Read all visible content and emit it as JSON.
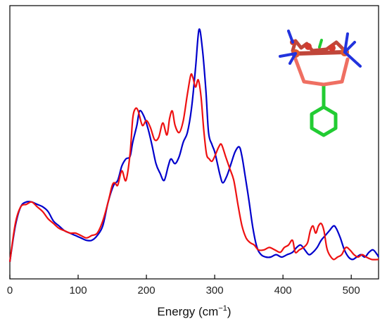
{
  "chart_data": {
    "type": "line",
    "title": "",
    "xlabel_main": "Energy (cm",
    "xlabel_sup": "−1",
    "xlabel_close": ")",
    "ylabel": "",
    "xlim": [
      0,
      540
    ],
    "ylim": [
      0,
      1
    ],
    "x_ticks": [
      0,
      100,
      200,
      300,
      400,
      500
    ],
    "y_ticks_visible": false,
    "grid": false,
    "legend": "none",
    "colors": {
      "blue": "#0000cc",
      "red": "#ee1111"
    },
    "series": [
      {
        "color": "#0000cc",
        "points": [
          [
            0,
            0.03
          ],
          [
            8,
            0.18
          ],
          [
            16,
            0.26
          ],
          [
            24,
            0.28
          ],
          [
            32,
            0.28
          ],
          [
            40,
            0.27
          ],
          [
            48,
            0.26
          ],
          [
            56,
            0.24
          ],
          [
            64,
            0.2
          ],
          [
            72,
            0.18
          ],
          [
            80,
            0.16
          ],
          [
            88,
            0.15
          ],
          [
            96,
            0.14
          ],
          [
            104,
            0.13
          ],
          [
            112,
            0.12
          ],
          [
            120,
            0.12
          ],
          [
            128,
            0.14
          ],
          [
            136,
            0.18
          ],
          [
            144,
            0.28
          ],
          [
            152,
            0.35
          ],
          [
            158,
            0.37
          ],
          [
            164,
            0.43
          ],
          [
            170,
            0.46
          ],
          [
            176,
            0.47
          ],
          [
            180,
            0.53
          ],
          [
            186,
            0.6
          ],
          [
            190,
            0.66
          ],
          [
            196,
            0.64
          ],
          [
            202,
            0.59
          ],
          [
            208,
            0.52
          ],
          [
            214,
            0.44
          ],
          [
            220,
            0.4
          ],
          [
            226,
            0.37
          ],
          [
            232,
            0.43
          ],
          [
            236,
            0.46
          ],
          [
            242,
            0.44
          ],
          [
            248,
            0.47
          ],
          [
            254,
            0.53
          ],
          [
            260,
            0.57
          ],
          [
            266,
            0.67
          ],
          [
            272,
            0.84
          ],
          [
            277,
            1.0
          ],
          [
            282,
            0.92
          ],
          [
            287,
            0.75
          ],
          [
            291,
            0.57
          ],
          [
            296,
            0.52
          ],
          [
            300,
            0.49
          ],
          [
            304,
            0.44
          ],
          [
            308,
            0.39
          ],
          [
            312,
            0.36
          ],
          [
            318,
            0.39
          ],
          [
            324,
            0.44
          ],
          [
            330,
            0.49
          ],
          [
            336,
            0.51
          ],
          [
            340,
            0.47
          ],
          [
            344,
            0.4
          ],
          [
            350,
            0.29
          ],
          [
            356,
            0.17
          ],
          [
            362,
            0.09
          ],
          [
            368,
            0.06
          ],
          [
            375,
            0.05
          ],
          [
            382,
            0.05
          ],
          [
            390,
            0.06
          ],
          [
            398,
            0.05
          ],
          [
            406,
            0.06
          ],
          [
            414,
            0.07
          ],
          [
            420,
            0.09
          ],
          [
            426,
            0.1
          ],
          [
            432,
            0.08
          ],
          [
            438,
            0.06
          ],
          [
            444,
            0.07
          ],
          [
            450,
            0.09
          ],
          [
            456,
            0.12
          ],
          [
            462,
            0.14
          ],
          [
            468,
            0.16
          ],
          [
            474,
            0.18
          ],
          [
            478,
            0.17
          ],
          [
            484,
            0.13
          ],
          [
            490,
            0.08
          ],
          [
            496,
            0.05
          ],
          [
            502,
            0.04
          ],
          [
            508,
            0.05
          ],
          [
            514,
            0.06
          ],
          [
            520,
            0.05
          ],
          [
            526,
            0.07
          ],
          [
            532,
            0.08
          ],
          [
            538,
            0.06
          ],
          [
            540,
            0.05
          ]
        ]
      },
      {
        "color": "#ee1111",
        "points": [
          [
            0,
            0.03
          ],
          [
            8,
            0.19
          ],
          [
            16,
            0.26
          ],
          [
            24,
            0.27
          ],
          [
            32,
            0.28
          ],
          [
            40,
            0.26
          ],
          [
            48,
            0.24
          ],
          [
            56,
            0.21
          ],
          [
            64,
            0.19
          ],
          [
            72,
            0.17
          ],
          [
            80,
            0.16
          ],
          [
            88,
            0.15
          ],
          [
            96,
            0.15
          ],
          [
            104,
            0.14
          ],
          [
            112,
            0.13
          ],
          [
            120,
            0.14
          ],
          [
            128,
            0.15
          ],
          [
            136,
            0.2
          ],
          [
            144,
            0.28
          ],
          [
            150,
            0.35
          ],
          [
            154,
            0.36
          ],
          [
            158,
            0.35
          ],
          [
            164,
            0.41
          ],
          [
            170,
            0.37
          ],
          [
            176,
            0.48
          ],
          [
            180,
            0.63
          ],
          [
            184,
            0.67
          ],
          [
            188,
            0.66
          ],
          [
            194,
            0.6
          ],
          [
            200,
            0.62
          ],
          [
            206,
            0.59
          ],
          [
            212,
            0.54
          ],
          [
            218,
            0.55
          ],
          [
            224,
            0.61
          ],
          [
            230,
            0.56
          ],
          [
            234,
            0.63
          ],
          [
            238,
            0.66
          ],
          [
            242,
            0.6
          ],
          [
            248,
            0.57
          ],
          [
            254,
            0.62
          ],
          [
            260,
            0.73
          ],
          [
            265,
            0.81
          ],
          [
            268,
            0.8
          ],
          [
            272,
            0.76
          ],
          [
            276,
            0.79
          ],
          [
            280,
            0.72
          ],
          [
            284,
            0.58
          ],
          [
            288,
            0.48
          ],
          [
            292,
            0.46
          ],
          [
            296,
            0.45
          ],
          [
            300,
            0.47
          ],
          [
            306,
            0.51
          ],
          [
            310,
            0.52
          ],
          [
            316,
            0.47
          ],
          [
            322,
            0.42
          ],
          [
            328,
            0.37
          ],
          [
            334,
            0.27
          ],
          [
            340,
            0.18
          ],
          [
            346,
            0.13
          ],
          [
            352,
            0.11
          ],
          [
            358,
            0.1
          ],
          [
            364,
            0.08
          ],
          [
            372,
            0.08
          ],
          [
            380,
            0.09
          ],
          [
            388,
            0.08
          ],
          [
            396,
            0.07
          ],
          [
            402,
            0.09
          ],
          [
            408,
            0.1
          ],
          [
            414,
            0.12
          ],
          [
            418,
            0.07
          ],
          [
            424,
            0.08
          ],
          [
            430,
            0.09
          ],
          [
            436,
            0.11
          ],
          [
            440,
            0.16
          ],
          [
            444,
            0.18
          ],
          [
            448,
            0.15
          ],
          [
            452,
            0.18
          ],
          [
            456,
            0.19
          ],
          [
            460,
            0.16
          ],
          [
            464,
            0.09
          ],
          [
            468,
            0.06
          ],
          [
            474,
            0.04
          ],
          [
            480,
            0.05
          ],
          [
            486,
            0.06
          ],
          [
            492,
            0.09
          ],
          [
            498,
            0.08
          ],
          [
            504,
            0.06
          ],
          [
            510,
            0.05
          ],
          [
            516,
            0.06
          ],
          [
            522,
            0.05
          ],
          [
            530,
            0.04
          ],
          [
            540,
            0.04
          ]
        ]
      }
    ]
  }
}
